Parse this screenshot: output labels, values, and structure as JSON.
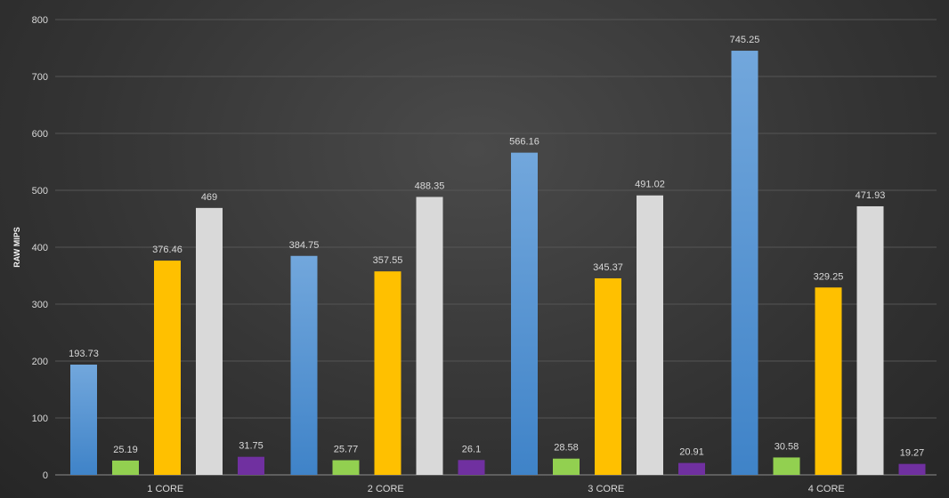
{
  "chart_data": {
    "type": "bar",
    "title": "",
    "xlabel": "",
    "ylabel": "RAW MIPS",
    "ylim": [
      0,
      800
    ],
    "yticks": [
      "0",
      "100",
      "200",
      "300",
      "400",
      "500",
      "600",
      "700",
      "800"
    ],
    "grid": true,
    "categories": [
      "1 CORE",
      "2 CORE",
      "3 CORE",
      "4 CORE"
    ],
    "series": [
      {
        "color": "#5b9bd5",
        "values": [
          193.73,
          384.75,
          566.16,
          745.25
        ]
      },
      {
        "color": "#92d050",
        "values": [
          25.19,
          25.77,
          28.58,
          30.58
        ]
      },
      {
        "color": "#ffc000",
        "values": [
          376.46,
          357.55,
          345.37,
          329.25
        ]
      },
      {
        "color": "#d9d9d9",
        "values": [
          469,
          488.35,
          491.02,
          471.93
        ]
      },
      {
        "color": "#7030a0",
        "values": [
          31.75,
          26.1,
          20.91,
          19.27
        ]
      }
    ]
  }
}
